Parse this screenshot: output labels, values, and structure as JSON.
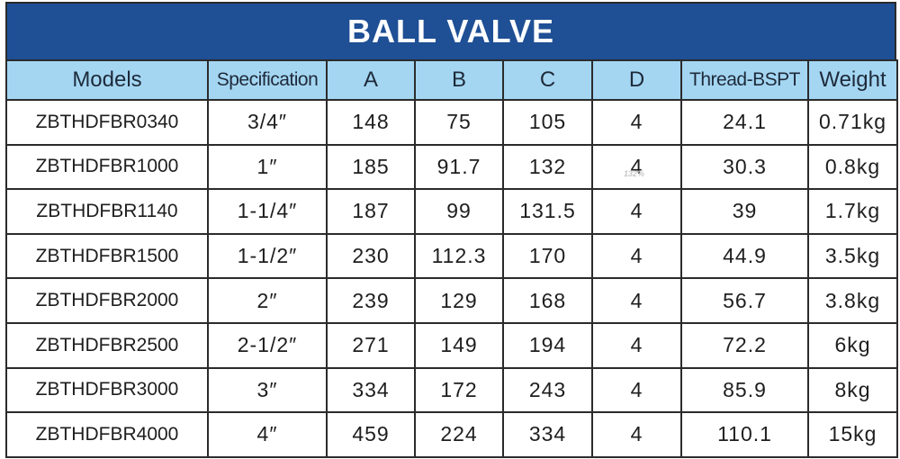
{
  "title": "BALL VALVE",
  "table": {
    "headers": [
      "Models",
      "Specification",
      "A",
      "B",
      "C",
      "D",
      "Thread-BSPT",
      "Weight"
    ],
    "rows": [
      [
        "ZBTHDFBR0340",
        "3/4″",
        "148",
        "75",
        "105",
        "4",
        "24.1",
        "0.71kg"
      ],
      [
        "ZBTHDFBR1000",
        "1″",
        "185",
        "91.7",
        "132",
        "4",
        "30.3",
        "0.8kg"
      ],
      [
        "ZBTHDFBR1140",
        "1-1/4″",
        "187",
        "99",
        "131.5",
        "4",
        "39",
        "1.7kg"
      ],
      [
        "ZBTHDFBR1500",
        "1-1/2″",
        "230",
        "112.3",
        "170",
        "4",
        "44.9",
        "3.5kg"
      ],
      [
        "ZBTHDFBR2000",
        "2″",
        "239",
        "129",
        "168",
        "4",
        "56.7",
        "3.8kg"
      ],
      [
        "ZBTHDFBR2500",
        "2-1/2″",
        "271",
        "149",
        "194",
        "4",
        "72.2",
        "6kg"
      ],
      [
        "ZBTHDFBR3000",
        "3″",
        "334",
        "172",
        "243",
        "4",
        "85.9",
        "8kg"
      ],
      [
        "ZBTHDFBR4000",
        "4″",
        "459",
        "224",
        "334",
        "4",
        "110.1",
        "15kg"
      ]
    ]
  },
  "zoom_badge": "132%"
}
